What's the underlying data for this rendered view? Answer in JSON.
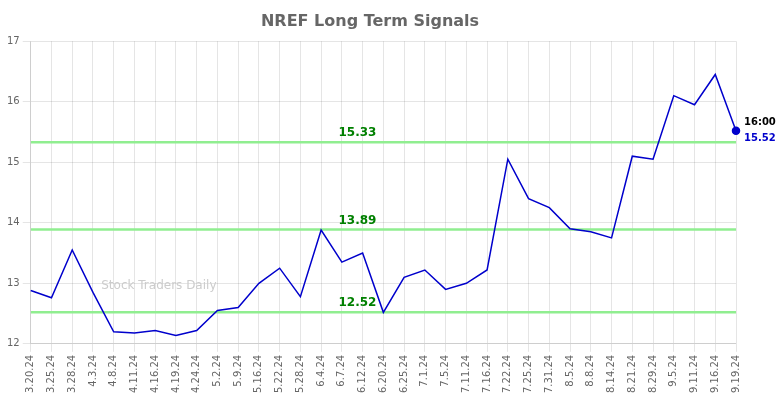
{
  "chart_data": {
    "type": "line",
    "title": "NREF Long Term Signals",
    "categories": [
      "3.20.24",
      "3.25.24",
      "3.28.24",
      "4.3.24",
      "4.8.24",
      "4.11.24",
      "4.16.24",
      "4.19.24",
      "4.24.24",
      "5.2.24",
      "5.9.24",
      "5.16.24",
      "5.22.24",
      "5.28.24",
      "6.4.24",
      "6.7.24",
      "6.12.24",
      "6.20.24",
      "6.25.24",
      "7.1.24",
      "7.5.24",
      "7.11.24",
      "7.16.24",
      "7.22.24",
      "7.25.24",
      "7.31.24",
      "8.5.24",
      "8.8.24",
      "8.14.24",
      "8.21.24",
      "8.29.24",
      "9.5.24",
      "9.11.24",
      "9.16.24",
      "9.19.24"
    ],
    "values": [
      12.88,
      12.76,
      13.55,
      12.85,
      12.2,
      12.18,
      12.22,
      12.14,
      12.22,
      12.55,
      12.6,
      13.0,
      13.25,
      12.78,
      13.88,
      13.35,
      13.5,
      12.52,
      13.1,
      13.22,
      12.9,
      13.0,
      13.22,
      15.05,
      14.4,
      14.25,
      13.9,
      13.85,
      13.75,
      15.1,
      15.05,
      16.1,
      15.95,
      16.45,
      15.52
    ],
    "color": "#0000cc",
    "hlines": [
      {
        "value": 12.52,
        "label": "12.52",
        "color": "#90ee90",
        "label_color": "#008000"
      },
      {
        "value": 13.89,
        "label": "13.89",
        "color": "#90ee90",
        "label_color": "#008000"
      },
      {
        "value": 15.33,
        "label": "15.33",
        "color": "#90ee90",
        "label_color": "#008000"
      }
    ],
    "last_point_labels": [
      {
        "text": "16:00",
        "color": "#000000"
      },
      {
        "text": "15.52",
        "color": "#0000cc"
      }
    ],
    "watermark": {
      "text": "Stock Traders Daily",
      "color": "#cccccc"
    },
    "ylim": [
      12.0,
      17.0
    ],
    "yticks": [
      12,
      13,
      14,
      15,
      16,
      17
    ],
    "grid": true
  }
}
